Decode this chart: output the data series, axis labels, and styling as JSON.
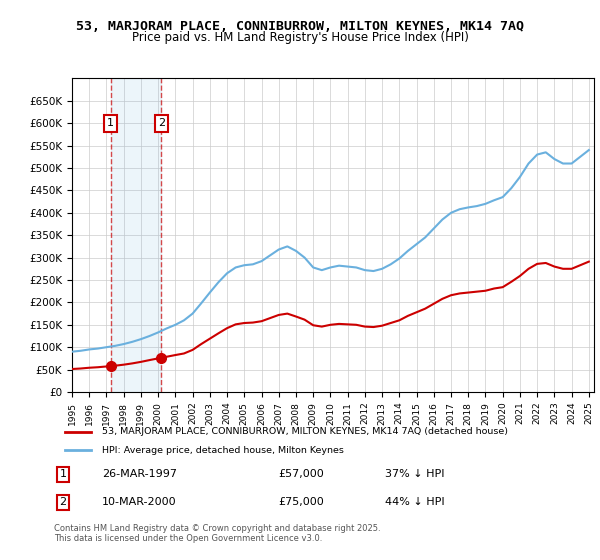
{
  "title": "53, MARJORAM PLACE, CONNIBURROW, MILTON KEYNES, MK14 7AQ",
  "subtitle": "Price paid vs. HM Land Registry's House Price Index (HPI)",
  "ylabel": "",
  "ylim": [
    0,
    700000
  ],
  "yticks": [
    0,
    50000,
    100000,
    150000,
    200000,
    250000,
    300000,
    350000,
    400000,
    450000,
    500000,
    550000,
    600000,
    650000
  ],
  "ytick_labels": [
    "£0",
    "£50K",
    "£100K",
    "£150K",
    "£200K",
    "£250K",
    "£300K",
    "£350K",
    "£400K",
    "£450K",
    "£500K",
    "£550K",
    "£600K",
    "£650K"
  ],
  "purchase1_date": 1997.24,
  "purchase1_price": 57000,
  "purchase1_label": "26-MAR-1997",
  "purchase1_amount": "£57,000",
  "purchase1_note": "37% ↓ HPI",
  "purchase2_date": 2000.19,
  "purchase2_price": 75000,
  "purchase2_label": "10-MAR-2000",
  "purchase2_amount": "£75,000",
  "purchase2_note": "44% ↓ HPI",
  "legend_line1": "53, MARJORAM PLACE, CONNIBURROW, MILTON KEYNES, MK14 7AQ (detached house)",
  "legend_line2": "HPI: Average price, detached house, Milton Keynes",
  "footer": "Contains HM Land Registry data © Crown copyright and database right 2025.\nThis data is licensed under the Open Government Licence v3.0.",
  "hpi_color": "#6ab0de",
  "price_color": "#cc0000",
  "background_color": "#ffffff",
  "grid_color": "#cccccc"
}
